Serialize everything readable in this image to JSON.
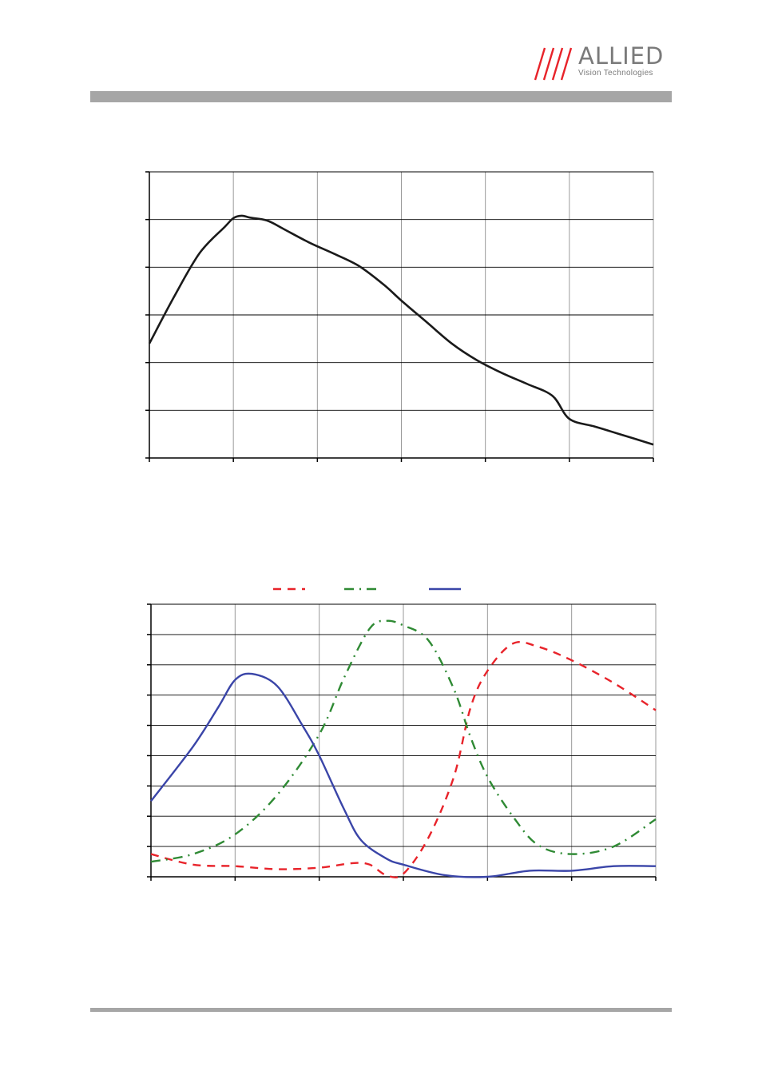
{
  "logo": {
    "name": "ALLIED",
    "tagline": "Vision Technologies"
  },
  "colors": {
    "bar_gray": "#a6a6a6",
    "red": "#e8232a",
    "green": "#2f8a34",
    "blue": "#3a45a8"
  },
  "chart_data": [
    {
      "type": "line",
      "title": "",
      "xlabel": "",
      "ylabel": "",
      "xlim": [
        0,
        6
      ],
      "ylim": [
        0,
        6
      ],
      "grid": true,
      "series": [
        {
          "x": [
            0,
            0.3,
            0.6,
            0.9,
            1.0,
            1.1,
            1.2,
            1.4,
            1.6,
            1.9,
            2.2,
            2.5,
            2.8,
            3.0,
            3.3,
            3.6,
            3.9,
            4.2,
            4.5,
            4.8,
            5.0,
            5.3,
            5.6,
            6.0
          ],
          "y": [
            2.4,
            3.4,
            4.3,
            4.85,
            5.03,
            5.08,
            5.04,
            4.98,
            4.8,
            4.52,
            4.28,
            4.02,
            3.62,
            3.3,
            2.85,
            2.4,
            2.05,
            1.78,
            1.55,
            1.3,
            0.82,
            0.66,
            0.5,
            0.28
          ]
        }
      ]
    },
    {
      "type": "line",
      "title": "",
      "xlabel": "",
      "ylabel": "",
      "xlim": [
        0,
        6
      ],
      "ylim": [
        0,
        9
      ],
      "grid": true,
      "legend": "top",
      "series": [
        {
          "color": "#e8232a",
          "dash": "dashed",
          "x": [
            0,
            0.5,
            1.0,
            1.5,
            2.0,
            2.4,
            2.6,
            2.8,
            3.0,
            3.3,
            3.6,
            3.8,
            4.0,
            4.3,
            4.6,
            5.0,
            5.5,
            6.0
          ],
          "y": [
            0.75,
            0.4,
            0.35,
            0.25,
            0.3,
            0.45,
            0.4,
            0.05,
            0.1,
            1.3,
            3.3,
            5.6,
            6.8,
            7.7,
            7.6,
            7.15,
            6.4,
            5.5
          ]
        },
        {
          "color": "#2f8a34",
          "dash": "dashdot",
          "x": [
            0,
            0.5,
            1.0,
            1.5,
            2.0,
            2.3,
            2.6,
            2.8,
            3.0,
            3.3,
            3.6,
            3.8,
            4.0,
            4.3,
            4.6,
            5.0,
            5.5,
            6.0
          ],
          "y": [
            0.5,
            0.75,
            1.4,
            2.7,
            4.7,
            6.6,
            8.2,
            8.45,
            8.3,
            7.8,
            6.2,
            4.6,
            3.3,
            2.0,
            1.05,
            0.75,
            1.0,
            1.9
          ]
        },
        {
          "color": "#3a45a8",
          "dash": "solid",
          "x": [
            0,
            0.5,
            0.8,
            1.0,
            1.2,
            1.5,
            1.8,
            2.0,
            2.3,
            2.5,
            2.8,
            3.0,
            3.5,
            4.0,
            4.5,
            5.0,
            5.5,
            6.0
          ],
          "y": [
            2.5,
            4.3,
            5.6,
            6.5,
            6.7,
            6.3,
            5.0,
            4.0,
            2.2,
            1.2,
            0.6,
            0.4,
            0.05,
            0.0,
            0.2,
            0.2,
            0.35,
            0.35
          ]
        }
      ]
    }
  ]
}
